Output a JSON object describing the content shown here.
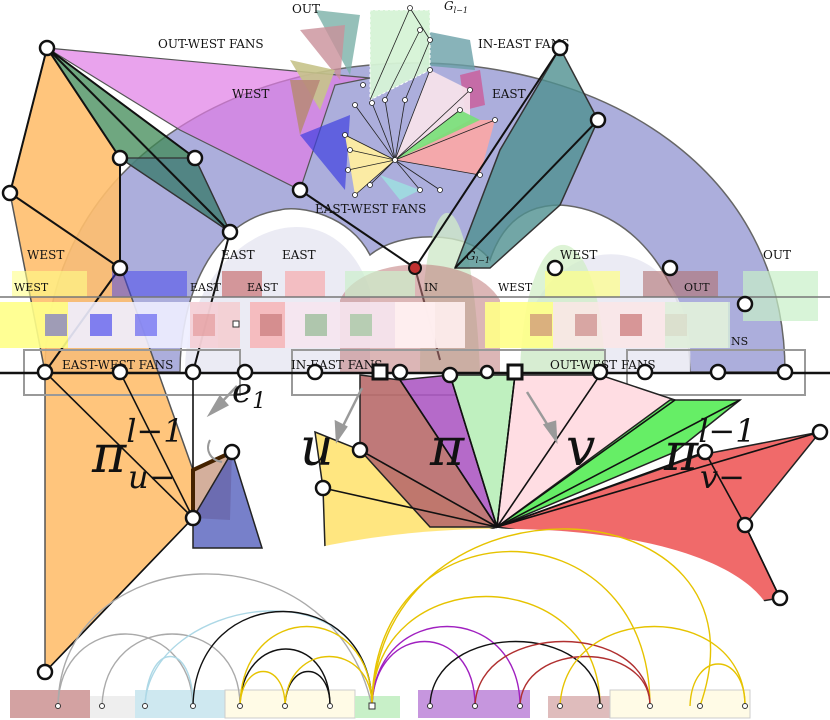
{
  "labels": {
    "top_out": "OUT",
    "top_g": "G",
    "top_g_sub": "l−1",
    "top_out_west_fans": "OUT-WEST FANS",
    "top_in_east_fans": "IN-EAST FANS",
    "top_west": "WEST",
    "top_east": "EAST",
    "top_east_west_fans": "EAST-WEST FANS",
    "mid_west_left": "WEST",
    "mid_east_1": "EAST",
    "mid_east_2": "EAST",
    "mid_g": "G",
    "mid_g_sub": "l−1",
    "mid_west_right": "WEST",
    "mid_out": "OUT",
    "bar_west": "WEST",
    "bar_east_1": "EAST",
    "bar_east_2": "EAST",
    "bar_in": "IN",
    "bar_west_2": "WEST",
    "bar_out": "OUT",
    "bar_ns": "NS",
    "fans_east_west": "EAST-WEST FANS",
    "fans_in_east": "IN-EAST FANS",
    "fans_out_west": "OUT-WEST FANS",
    "e1": "e",
    "e1_sub": "1",
    "pi_u": "π",
    "pi_u_sup": "l−1",
    "pi_u_sub": "u−",
    "u": "u",
    "pi": "π",
    "v": "v",
    "pi_v": "π",
    "pi_v_sup": "l−1",
    "pi_v_sub": "v−"
  },
  "colors": {
    "blue_region": "#8c8fce",
    "orange": "#ffbf6e",
    "purple": "#e07ce6",
    "dark_green": "#3f8a55",
    "teal": "#5f9ea0",
    "brown": "#c07a7a",
    "violet": "#b86ad0",
    "light_green": "#b8f0b8",
    "pink": "#ffd6dc",
    "green": "#66ee66",
    "red": "#f06a6a",
    "yellow": "#ffe680",
    "royal": "#6b74c8"
  }
}
